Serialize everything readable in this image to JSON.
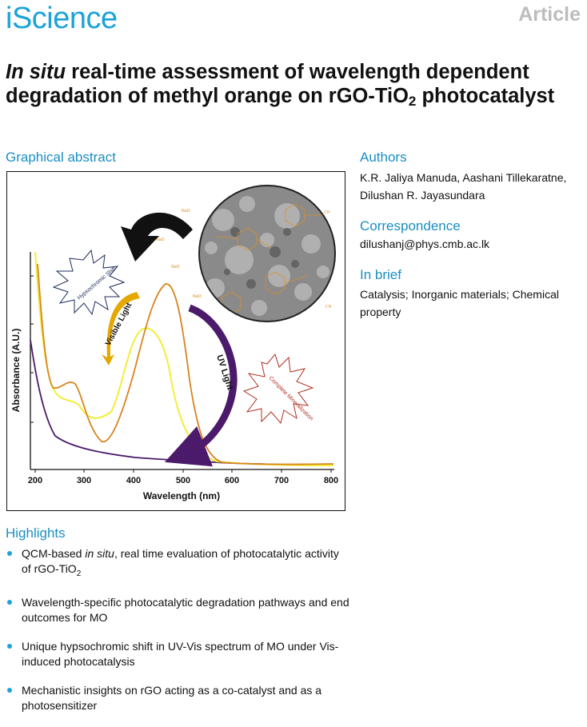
{
  "header": {
    "journal": "iScience",
    "article_type": "Article"
  },
  "title": {
    "part1_italic": "In situ",
    "part2": " real-time assessment of wavelength dependent degradation of methyl orange on rGO-TiO",
    "subscript": "2",
    "part3": " photocatalyst"
  },
  "sections": {
    "graphical_abstract": "Graphical abstract",
    "authors": "Authors",
    "correspondence": "Correspondence",
    "in_brief": "In brief",
    "highlights": "Highlights"
  },
  "authors_text": "K.R. Jaliya Manuda, Aashani Tillekaratne, Dilushan R. Jayasundara",
  "correspondence_email": "dilushanj@phys.cmb.ac.lk",
  "in_brief_text": "Catalysis; Inorganic materials; Chemical property",
  "highlights": [
    {
      "pre": "QCM-based ",
      "italic": "in situ",
      "post": ", real time evaluation of photocatalytic activity of rGO-TiO",
      "sub": "2"
    },
    {
      "pre": "Wavelength-specific photocatalytic degradation pathways and end outcomes for MO",
      "italic": "",
      "post": "",
      "sub": ""
    },
    {
      "pre": "Unique hypsochromic shift in UV-Vis spectrum of MO under Vis-induced photocatalysis",
      "italic": "",
      "post": "",
      "sub": ""
    },
    {
      "pre": "Mechanistic insights on rGO acting as a co-catalyst and as a photosensitizer",
      "italic": "",
      "post": "",
      "sub": ""
    }
  ],
  "figure": {
    "xlabel": "Wavelength (nm)",
    "ylabel": "Absorbance (A.U.)",
    "xticks": [
      "200",
      "300",
      "400",
      "500",
      "600",
      "700",
      "800"
    ],
    "burst_left": "Hypsochromic Shift",
    "burst_right": "Complete Mineralization",
    "arrow_vis": "Visible Light",
    "arrow_uv": "UV Light",
    "colors": {
      "orange": "#d88420",
      "yellow": "#f2ee3a",
      "purple": "#4b1a6b",
      "journal_blue": "#1ba3d8"
    }
  }
}
